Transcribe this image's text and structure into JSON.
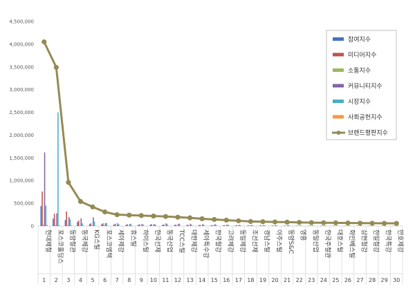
{
  "chart_data": {
    "type": "bar",
    "categories": [
      "현대제철",
      "포스코홀딩스",
      "동양철관",
      "동국제강",
      "KG스틸",
      "포스코엠텍",
      "세아제강",
      "휴스틸",
      "하이스틸",
      "한국선재",
      "동국산업",
      "TCC스틸",
      "대한제강",
      "세아특수강",
      "한국철강",
      "고려제강",
      "동일제강",
      "조선선재",
      "경남스틸",
      "아주스틸",
      "동양S&C",
      "영흥",
      "동일산업",
      "한국주철관",
      "대호스틸",
      "화인베스틸",
      "삼현철강",
      "한일철강",
      "한국특강",
      "만호제강"
    ],
    "ranks": [
      "1",
      "2",
      "3",
      "4",
      "5",
      "6",
      "7",
      "8",
      "9",
      "10",
      "11",
      "12",
      "13",
      "14",
      "15",
      "16",
      "17",
      "18",
      "19",
      "20",
      "21",
      "22",
      "23",
      "24",
      "25",
      "26",
      "27",
      "28",
      "29",
      "30"
    ],
    "ylim": [
      0,
      4500000
    ],
    "yticks": [
      "0",
      "500,000",
      "1,000,000",
      "1,500,000",
      "2,000,000",
      "2,500,000",
      "3,000,000",
      "3,500,000",
      "4,000,000",
      "4,500,000"
    ],
    "legend_position": "top-right",
    "series": [
      {
        "name": "참여지수",
        "color": "#4472C4",
        "kind": "bar",
        "values": [
          440000,
          160000,
          130000,
          90000,
          40000,
          40000,
          30000,
          25000,
          25000,
          30000,
          25000,
          25000,
          20000,
          20000,
          15000,
          15000,
          12000,
          10000,
          10000,
          8000,
          8000,
          6000,
          6000,
          6000,
          5000,
          5000,
          5000,
          4000,
          4000,
          4000
        ]
      },
      {
        "name": "미디어지수",
        "color": "#C0504D",
        "kind": "bar",
        "values": [
          760000,
          270000,
          320000,
          120000,
          60000,
          60000,
          50000,
          40000,
          40000,
          40000,
          35000,
          30000,
          30000,
          25000,
          20000,
          20000,
          18000,
          15000,
          15000,
          12000,
          10000,
          8000,
          8000,
          8000,
          6000,
          6000,
          6000,
          5000,
          5000,
          5000
        ]
      },
      {
        "name": "소통지수",
        "color": "#9BBB59",
        "kind": "bar",
        "values": [
          30000,
          20000,
          20000,
          10000,
          10000,
          8000,
          8000,
          6000,
          6000,
          6000,
          5000,
          5000,
          5000,
          4000,
          4000,
          4000,
          3000,
          3000,
          3000,
          3000,
          2000,
          2000,
          2000,
          2000,
          2000,
          2000,
          2000,
          2000,
          2000,
          2000
        ]
      },
      {
        "name": "커뮤니티지수",
        "color": "#8064A2",
        "kind": "bar",
        "values": [
          1620000,
          280000,
          200000,
          170000,
          190000,
          60000,
          60000,
          40000,
          40000,
          40000,
          60000,
          50000,
          50000,
          40000,
          40000,
          30000,
          25000,
          20000,
          20000,
          20000,
          15000,
          10000,
          10000,
          10000,
          8000,
          8000,
          8000,
          6000,
          6000,
          6000
        ]
      },
      {
        "name": "시장지수",
        "color": "#4BACC6",
        "kind": "bar",
        "values": [
          450000,
          2500000,
          150000,
          60000,
          100000,
          70000,
          40000,
          50000,
          40000,
          40000,
          40000,
          50000,
          30000,
          30000,
          30000,
          30000,
          20000,
          20000,
          15000,
          15000,
          20000,
          10000,
          10000,
          10000,
          8000,
          8000,
          8000,
          6000,
          6000,
          6000
        ]
      },
      {
        "name": "사회공헌지수",
        "color": "#F79646",
        "kind": "bar",
        "values": [
          30000,
          20000,
          20000,
          10000,
          10000,
          10000,
          8000,
          6000,
          6000,
          6000,
          5000,
          5000,
          5000,
          5000,
          4000,
          4000,
          4000,
          3000,
          3000,
          3000,
          2000,
          2000,
          2000,
          2000,
          2000,
          2000,
          2000,
          2000,
          2000,
          2000
        ]
      },
      {
        "name": "브랜드평판지수",
        "color": "#948A54",
        "kind": "line",
        "values": [
          4050000,
          3490000,
          960000,
          540000,
          420000,
          310000,
          250000,
          240000,
          230000,
          220000,
          210000,
          195000,
          180000,
          160000,
          145000,
          130000,
          115000,
          100000,
          95000,
          90000,
          85000,
          80000,
          75000,
          72000,
          70000,
          67000,
          64000,
          62000,
          60000,
          58000
        ]
      }
    ]
  }
}
